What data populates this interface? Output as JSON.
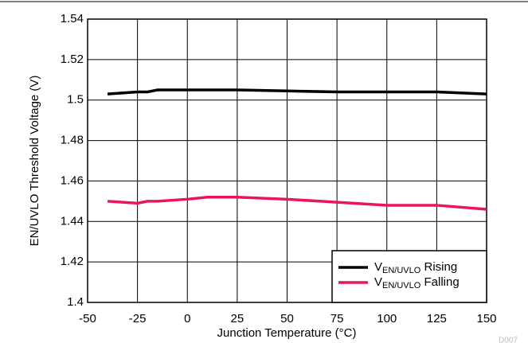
{
  "chart_data": {
    "type": "line",
    "x_label": "Junction Temperature (°C)",
    "y_label": "EN/UVLO Threshold Voltage (V)",
    "annotation": "D007",
    "x": [
      -40,
      -25,
      -20,
      -15,
      0,
      10,
      25,
      50,
      75,
      100,
      125,
      150
    ],
    "series": [
      {
        "name": "VEN/UVLO Rising",
        "color": "#000000",
        "values": [
          1.503,
          1.504,
          1.504,
          1.505,
          1.505,
          1.505,
          1.505,
          1.5045,
          1.504,
          1.504,
          1.504,
          1.503
        ]
      },
      {
        "name": "VEN/UVLO Falling",
        "color": "#e8175d",
        "values": [
          1.45,
          1.449,
          1.45,
          1.45,
          1.451,
          1.452,
          1.452,
          1.451,
          1.4495,
          1.448,
          1.448,
          1.446
        ]
      }
    ],
    "xlim": [
      -50,
      150
    ],
    "xticks": [
      -50,
      -25,
      0,
      25,
      50,
      75,
      100,
      125,
      150
    ],
    "ylim": [
      1.4,
      1.54
    ],
    "yticks": [
      1.4,
      1.42,
      1.44,
      1.46,
      1.48,
      1.5,
      1.52,
      1.54
    ],
    "grid": true,
    "legend": "lower right"
  }
}
